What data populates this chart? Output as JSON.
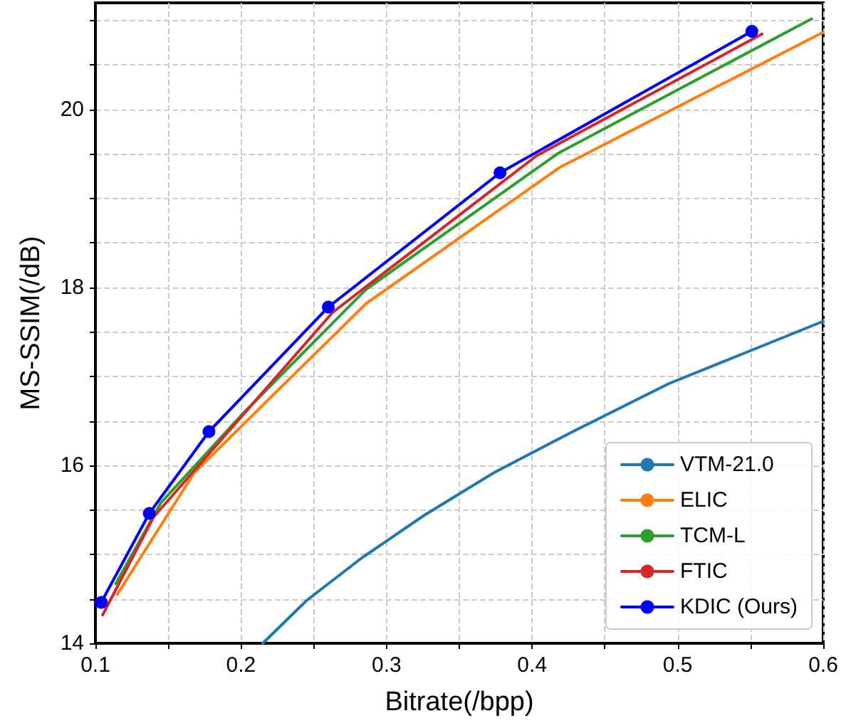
{
  "chart_data": {
    "type": "line",
    "xlabel": "Bitrate(/bpp)",
    "ylabel": "MS-SSIM(/dB)",
    "xlim": [
      0.1,
      0.6
    ],
    "xticks": [
      0.1,
      {
        "value": 0.15,
        "label": null
      },
      0.2,
      {
        "value": 0.25,
        "label": null
      },
      0.3,
      {
        "value": 0.35,
        "label": null
      },
      0.4,
      {
        "value": 0.45,
        "label": null
      },
      0.5,
      {
        "value": 0.55,
        "label": null
      },
      0.6
    ],
    "ylim": [
      14,
      21.2
    ],
    "yticks": [
      14,
      {
        "value": 14.5,
        "label": null
      },
      {
        "value": 15,
        "label": null
      },
      {
        "value": 15.5,
        "label": null
      },
      16,
      {
        "value": 16.5,
        "label": null
      },
      {
        "value": 17,
        "label": null
      },
      {
        "value": 17.5,
        "label": null
      },
      18,
      {
        "value": 18.5,
        "label": null
      },
      {
        "value": 19,
        "label": null
      },
      {
        "value": 19.5,
        "label": null
      },
      20,
      {
        "value": 20.5,
        "label": null
      },
      {
        "value": 21,
        "label": null
      }
    ],
    "grid": true,
    "legend": "bottom right",
    "line_style": "solid",
    "series": [
      {
        "name": "VTM-21.0",
        "color": "#1f77b4",
        "marker": "none",
        "x": [
          0.215,
          0.245,
          0.283,
          0.326,
          0.374,
          0.428,
          0.494,
          0.6
        ],
        "values": [
          14.0,
          14.48,
          14.96,
          15.44,
          15.92,
          16.38,
          16.92,
          17.62
        ]
      },
      {
        "name": "ELIC",
        "color": "#ff7f0e",
        "marker": "none",
        "x": [
          0.115,
          0.168,
          0.286,
          0.419,
          0.6
        ],
        "values": [
          14.55,
          15.92,
          17.82,
          19.35,
          20.87
        ]
      },
      {
        "name": "TCM-L",
        "color": "#2ca02c",
        "marker": "none",
        "x": [
          0.114,
          0.145,
          0.2,
          0.286,
          0.418,
          0.592
        ],
        "values": [
          14.67,
          15.58,
          16.56,
          17.98,
          19.51,
          21.02
        ]
      },
      {
        "name": "FTIC",
        "color": "#d62728",
        "marker": "none",
        "x": [
          0.105,
          0.14,
          0.263,
          0.403,
          0.558
        ],
        "values": [
          14.32,
          15.42,
          17.72,
          19.48,
          20.85
        ]
      },
      {
        "name": "KDIC (Ours)",
        "color": "#0000ff",
        "marker": "circle",
        "x": [
          0.104,
          0.137,
          0.178,
          0.26,
          0.378,
          0.551
        ],
        "values": [
          14.46,
          15.46,
          16.38,
          17.78,
          19.29,
          20.88
        ]
      }
    ]
  }
}
